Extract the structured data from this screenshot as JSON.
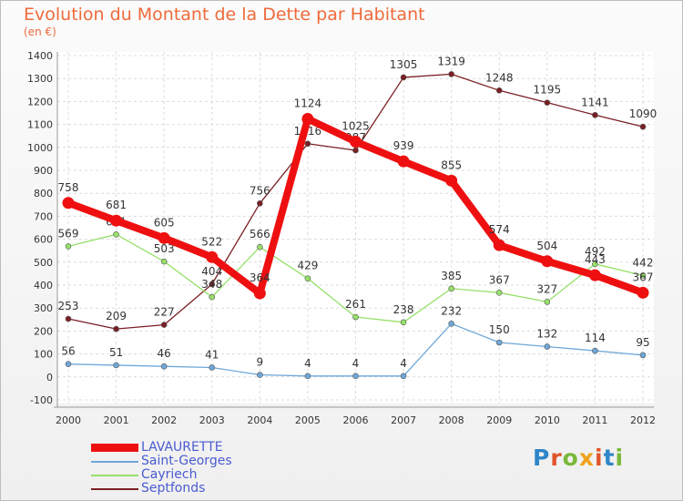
{
  "title": "Evolution du Montant de la Dette par Habitant",
  "subtitle": "(en €)",
  "logo": "Proxiti",
  "chart_data": {
    "type": "line",
    "title": "Evolution du Montant de la Dette par Habitant",
    "subtitle": "(en €)",
    "xlabel": "",
    "ylabel": "",
    "ylim": [
      -100,
      1400
    ],
    "yticks": [
      -100,
      0,
      100,
      200,
      300,
      400,
      500,
      600,
      700,
      800,
      900,
      1000,
      1100,
      1200,
      1300,
      1400
    ],
    "categories": [
      "2000",
      "2001",
      "2002",
      "2003",
      "2004",
      "2005",
      "2006",
      "2007",
      "2008",
      "2009",
      "2010",
      "2011",
      "2012"
    ],
    "grid": true,
    "legend_position": "bottom-left",
    "series": [
      {
        "name": "Septfonds",
        "color": "#7a1f24",
        "values": [
          253,
          209,
          227,
          404,
          756,
          1016,
          987,
          1305,
          1319,
          1248,
          1195,
          1141,
          1090
        ]
      },
      {
        "name": "Cayriech",
        "color": "#96e06a",
        "values": [
          569,
          621,
          503,
          348,
          566,
          429,
          261,
          238,
          385,
          367,
          327,
          492,
          442
        ]
      },
      {
        "name": "Saint-Georges",
        "color": "#6fa8d8",
        "values": [
          56,
          51,
          46,
          41,
          9,
          4,
          4,
          4,
          232,
          150,
          132,
          114,
          95
        ]
      },
      {
        "name": "LAVAURETTE",
        "color": "#ee1010",
        "values": [
          758,
          681,
          605,
          522,
          364,
          1124,
          1025,
          939,
          855,
          574,
          504,
          443,
          367
        ]
      }
    ]
  }
}
